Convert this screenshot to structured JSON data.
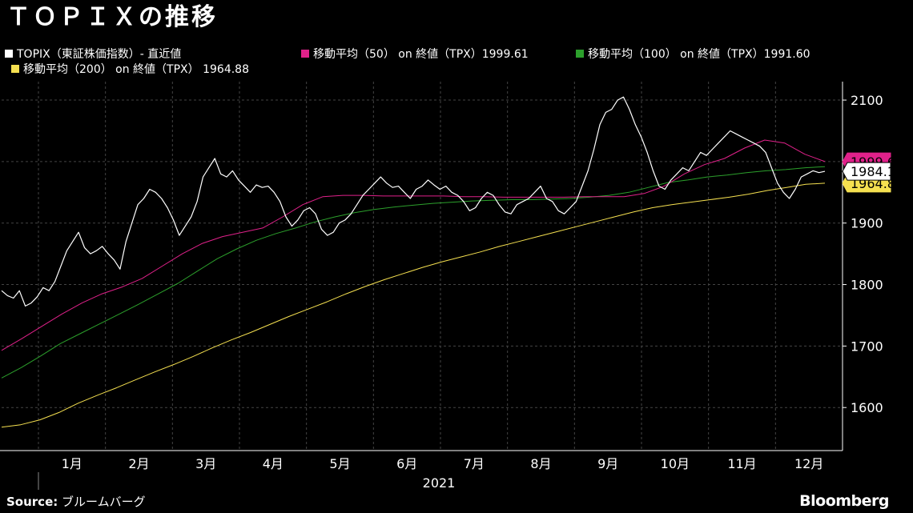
{
  "title": "ＴＯＰＩＸの推移",
  "legend": [
    {
      "label": "TOPIX（東証株価指数）- 直近値",
      "color": "#ffffff"
    },
    {
      "label": "移動平均（50） on 終値（TPX）1999.61",
      "color": "#e0218a"
    },
    {
      "label": "移動平均（100） on 終値（TPX）1991.60",
      "color": "#2ca02c"
    },
    {
      "label": "移動平均（200） on 終値（TPX） 1964.88",
      "color": "#f5e050"
    }
  ],
  "source_label": "Source:",
  "source_value": "ブルームバーグ",
  "brand": "Bloomberg",
  "chart_data": {
    "type": "line",
    "x_year": "2021",
    "months": [
      "1月",
      "2月",
      "3月",
      "4月",
      "5月",
      "6月",
      "7月",
      "8月",
      "9月",
      "10月",
      "11月",
      "12月"
    ],
    "ylim": [
      1530,
      2130
    ],
    "yticks": [
      "1600",
      "1700",
      "1800",
      "1900",
      "2000",
      "2100"
    ],
    "current_label": "1984.10",
    "ma50_label": "1999.61",
    "ma200_label": "1964.88",
    "series": [
      {
        "name": "TOPIX（東証株価指数）- 直近値",
        "color": "#ffffff",
        "values": [
          1790,
          1782,
          1778,
          1790,
          1765,
          1770,
          1780,
          1795,
          1790,
          1805,
          1830,
          1855,
          1870,
          1885,
          1860,
          1850,
          1855,
          1862,
          1850,
          1840,
          1825,
          1870,
          1900,
          1930,
          1940,
          1955,
          1950,
          1940,
          1925,
          1905,
          1880,
          1895,
          1910,
          1935,
          1975,
          1990,
          2005,
          1980,
          1975,
          1985,
          1970,
          1960,
          1950,
          1962,
          1958,
          1960,
          1950,
          1935,
          1910,
          1895,
          1905,
          1920,
          1925,
          1915,
          1890,
          1880,
          1885,
          1900,
          1905,
          1915,
          1930,
          1945,
          1955,
          1965,
          1975,
          1965,
          1958,
          1960,
          1950,
          1940,
          1955,
          1960,
          1970,
          1962,
          1955,
          1960,
          1950,
          1945,
          1935,
          1920,
          1925,
          1940,
          1950,
          1945,
          1930,
          1918,
          1915,
          1930,
          1935,
          1940,
          1950,
          1960,
          1940,
          1935,
          1920,
          1915,
          1925,
          1935,
          1960,
          1985,
          2020,
          2060,
          2080,
          2085,
          2100,
          2105,
          2085,
          2060,
          2040,
          2015,
          1985,
          1960,
          1955,
          1970,
          1980,
          1990,
          1985,
          2000,
          2015,
          2010,
          2020,
          2030,
          2040,
          2050,
          2045,
          2040,
          2035,
          2030,
          2025,
          2015,
          1990,
          1965,
          1950,
          1940,
          1955,
          1975,
          1980,
          1985,
          1982,
          1984.1
        ]
      },
      {
        "name": "移動平均（50） on 終値（TPX）1999.61",
        "color": "#e0218a",
        "values": [
          1693,
          1712,
          1732,
          1752,
          1770,
          1785,
          1796,
          1810,
          1830,
          1850,
          1867,
          1878,
          1885,
          1892,
          1910,
          1930,
          1943,
          1945,
          1945,
          1944,
          1944,
          1944,
          1944,
          1943,
          1943,
          1942,
          1942,
          1942,
          1942,
          1943,
          1943,
          1943,
          1948,
          1960,
          1980,
          1995,
          2005,
          2022,
          2035,
          2030,
          2012,
          2000
        ]
      },
      {
        "name": "移動平均（100） on 終値（TPX）1991.60",
        "color": "#2ca02c",
        "values": [
          1648,
          1665,
          1684,
          1704,
          1720,
          1736,
          1752,
          1768,
          1785,
          1802,
          1822,
          1842,
          1858,
          1872,
          1883,
          1892,
          1902,
          1910,
          1917,
          1922,
          1926,
          1929,
          1932,
          1934,
          1936,
          1937,
          1938,
          1938,
          1939,
          1940,
          1942,
          1945,
          1950,
          1958,
          1966,
          1970,
          1975,
          1978,
          1982,
          1985,
          1987,
          1990,
          1991.6
        ]
      },
      {
        "name": "移動平均（200） on 終値（TPX） 1964.88",
        "color": "#f5e050",
        "values": [
          1568,
          1572,
          1580,
          1592,
          1607,
          1620,
          1632,
          1645,
          1658,
          1670,
          1683,
          1697,
          1710,
          1722,
          1735,
          1748,
          1760,
          1772,
          1785,
          1797,
          1808,
          1818,
          1828,
          1837,
          1845,
          1853,
          1862,
          1870,
          1878,
          1886,
          1894,
          1902,
          1910,
          1918,
          1925,
          1930,
          1934,
          1938,
          1942,
          1947,
          1953,
          1958,
          1963,
          1964.88
        ]
      }
    ]
  }
}
